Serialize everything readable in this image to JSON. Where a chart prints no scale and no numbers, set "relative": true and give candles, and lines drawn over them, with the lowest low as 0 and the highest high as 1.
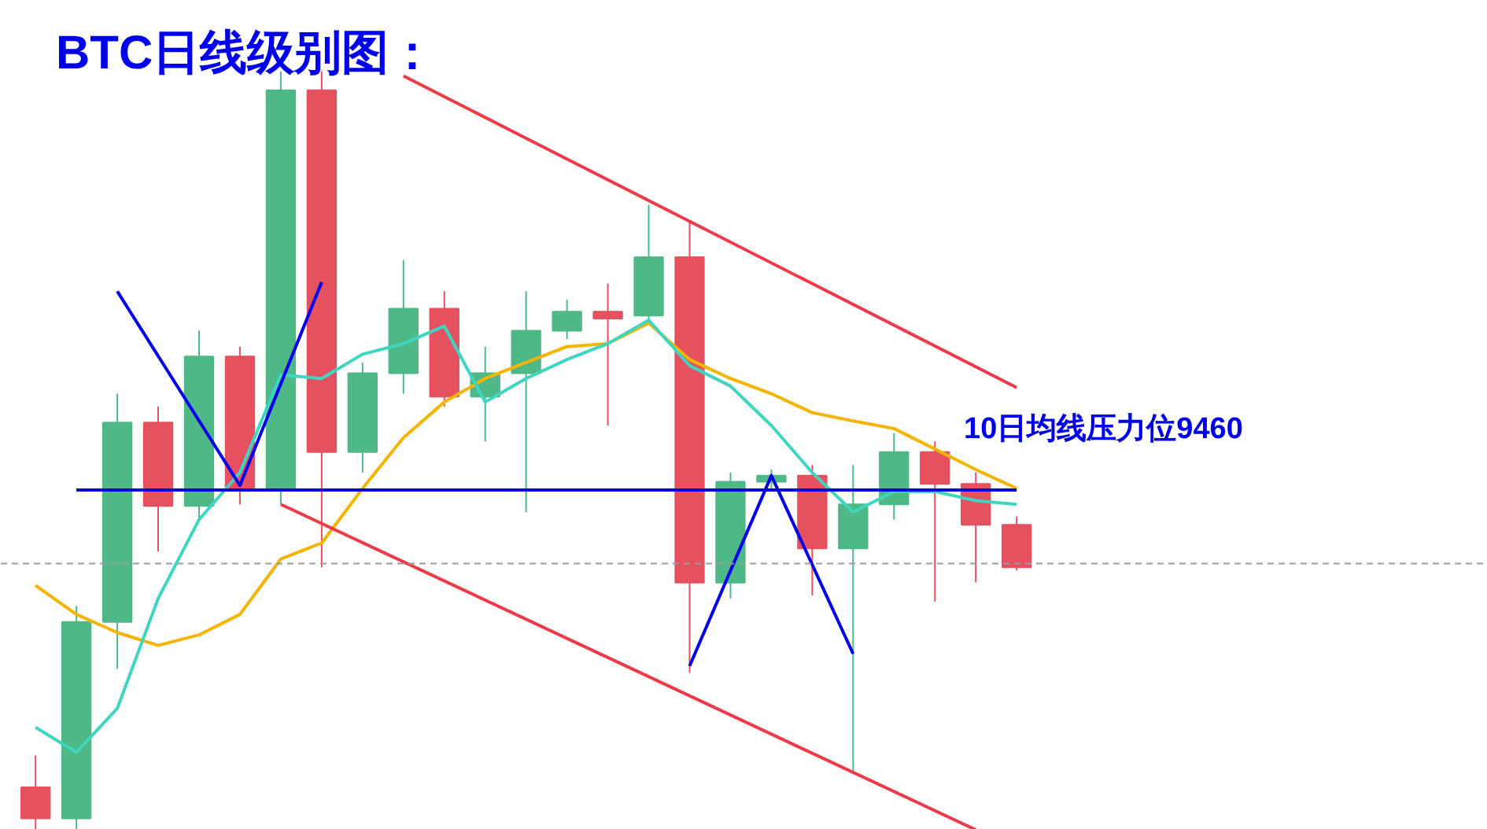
{
  "chart_data": {
    "type": "candlestick",
    "title": "BTC日线级别图：",
    "relative": true,
    "categories": [
      null,
      null,
      null,
      null,
      null,
      null,
      null,
      null,
      null,
      null,
      null,
      null,
      null,
      null,
      null,
      null,
      null,
      null,
      null,
      null,
      null,
      null,
      null,
      null,
      null
    ],
    "colors": [
      "#e5515f",
      "#4fb887",
      "#4fb887",
      "#e5515f",
      "#4fb887",
      "#e5515f",
      "#4fb887",
      "#e5515f",
      "#4fb887",
      "#4fb887",
      "#e5515f",
      "#4fb887",
      "#4fb887",
      "#4fb887",
      "#e5515f",
      "#4fb887",
      "#e5515f",
      "#4fb887",
      "#4fb887",
      "#e5515f",
      "#4fb887",
      "#4fb887",
      "#e5515f",
      "#e5515f",
      "#e5515f"
    ],
    "ohlc": [
      [
        0.056,
        0.098,
        0,
        0.015
      ],
      [
        0.015,
        0.295,
        0,
        0.274
      ],
      [
        0.274,
        0.575,
        0.212,
        0.537
      ],
      [
        0.537,
        0.558,
        0.367,
        0.427
      ],
      [
        0.427,
        0.658,
        0.409,
        0.624
      ],
      [
        0.624,
        0.637,
        0.429,
        0.45
      ],
      [
        0.45,
        1.0,
        0.429,
        0.975
      ],
      [
        0.975,
        1.0,
        0.346,
        0.498
      ],
      [
        0.498,
        0.616,
        0.471,
        0.602
      ],
      [
        0.602,
        0.751,
        0.575,
        0.687
      ],
      [
        0.687,
        0.71,
        0.558,
        0.571
      ],
      [
        0.571,
        0.637,
        0.512,
        0.602
      ],
      [
        0.602,
        0.71,
        0.419,
        0.658
      ],
      [
        0.658,
        0.699,
        0.647,
        0.683
      ],
      [
        0.683,
        0.72,
        0.533,
        0.674
      ],
      [
        0.678,
        0.824,
        0.668,
        0.755
      ],
      [
        0.755,
        0.803,
        0.207,
        0.326
      ],
      [
        0.326,
        0.471,
        0.305,
        0.459
      ],
      [
        0.459,
        0.475,
        0.45,
        0.467
      ],
      [
        0.467,
        0.481,
        0.309,
        0.371
      ],
      [
        0.371,
        0.481,
        0.073,
        0.429
      ],
      [
        0.429,
        0.523,
        0.409,
        0.498
      ],
      [
        0.498,
        0.512,
        0.301,
        0.456
      ],
      [
        0.456,
        0.471,
        0.326,
        0.402
      ],
      [
        0.402,
        0.413,
        0.342,
        0.346
      ]
    ],
    "series": [
      {
        "type": "line",
        "color": "#f5b400",
        "values": [
          0.322,
          0.284,
          0.26,
          0.243,
          0.257,
          0.284,
          0.357,
          0.378,
          0.45,
          0.517,
          0.564,
          0.595,
          0.616,
          0.637,
          0.641,
          0.668,
          0.62,
          0.595,
          0.575,
          0.55,
          0.539,
          0.529,
          0.502,
          0.475,
          0.45
        ]
      },
      {
        "type": "line",
        "color": "#3dd6c0",
        "values": [
          0.135,
          0.102,
          0.16,
          0.305,
          0.409,
          0.471,
          0.6,
          0.595,
          0.627,
          0.641,
          0.664,
          0.564,
          0.595,
          0.62,
          0.641,
          0.672,
          0.612,
          0.585,
          0.533,
          0.471,
          0.419,
          0.446,
          0.446,
          0.434,
          0.429
        ]
      },
      {
        "type": "line",
        "color": "#f03a4a",
        "values": [
          null,
          null,
          null,
          null,
          null,
          null,
          null,
          null,
          null,
          0.994,
          null,
          null,
          null,
          null,
          null,
          null,
          null,
          null,
          null,
          null,
          null,
          null,
          null,
          null,
          0.583
        ]
      },
      {
        "type": "line",
        "color": "#f03a4a",
        "values": [
          null,
          null,
          null,
          null,
          null,
          null,
          0.429,
          null,
          null,
          null,
          null,
          null,
          null,
          null,
          null,
          null,
          null,
          null,
          null,
          null,
          null,
          null,
          null,
          0.0,
          null
        ]
      },
      {
        "type": "line",
        "color": "#0000ee",
        "values": [
          null,
          null,
          0.71,
          null,
          null,
          0.454,
          null,
          0.722,
          null,
          null,
          null,
          null,
          null,
          null,
          null,
          null,
          null,
          null,
          null,
          null,
          null,
          null,
          null,
          null,
          null
        ]
      },
      {
        "type": "line",
        "color": "#0000ee",
        "values": [
          null,
          null,
          null,
          null,
          null,
          null,
          null,
          null,
          null,
          null,
          null,
          null,
          null,
          null,
          null,
          null,
          0.216,
          null,
          0.467,
          null,
          0.232,
          null,
          null,
          null,
          null
        ]
      },
      {
        "type": "line",
        "color": "#0000ee",
        "values": [
          null,
          0.448,
          null,
          null,
          null,
          null,
          null,
          null,
          null,
          null,
          null,
          null,
          null,
          null,
          null,
          null,
          null,
          null,
          null,
          null,
          null,
          null,
          null,
          null,
          0.448
        ]
      }
    ],
    "ref_lines": [
      {
        "axis": "y",
        "value": 0.351,
        "color": "#999999",
        "line_style": "dashed"
      }
    ],
    "annotations": [
      "10日均线压力位9460"
    ]
  }
}
